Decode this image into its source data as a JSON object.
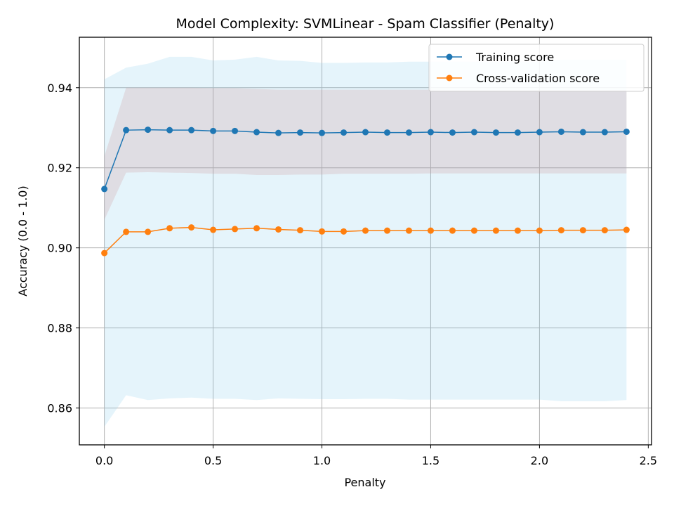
{
  "chart_data": {
    "type": "line",
    "title": "Model Complexity: SVMLinear - Spam Classifier (Penalty)",
    "xlabel": "Penalty",
    "ylabel": "Accuracy (0.0 - 1.0)",
    "xlim": [
      -0.115,
      2.515
    ],
    "ylim": [
      0.8508,
      0.9526
    ],
    "xticks": [
      0.0,
      0.5,
      1.0,
      1.5,
      2.0,
      2.5
    ],
    "xtick_labels": [
      "0.0",
      "0.5",
      "1.0",
      "1.5",
      "2.0",
      "2.5"
    ],
    "yticks": [
      0.86,
      0.88,
      0.9,
      0.92,
      0.94
    ],
    "ytick_labels": [
      "0.86",
      "0.88",
      "0.90",
      "0.92",
      "0.94"
    ],
    "grid": true,
    "legend_position": "top-right",
    "x": [
      0.0,
      0.1,
      0.2,
      0.3,
      0.4,
      0.5,
      0.6,
      0.7,
      0.8,
      0.9,
      1.0,
      1.1,
      1.2,
      1.3,
      1.4,
      1.5,
      1.6,
      1.7,
      1.8,
      1.9,
      2.0,
      2.1,
      2.2,
      2.3,
      2.4
    ],
    "series": [
      {
        "name": "Training score",
        "color": "#1f77b4",
        "values": [
          0.9147,
          0.9294,
          0.9295,
          0.9294,
          0.9294,
          0.9292,
          0.9292,
          0.9289,
          0.9287,
          0.9288,
          0.9287,
          0.9288,
          0.9289,
          0.9288,
          0.9288,
          0.9289,
          0.9288,
          0.9289,
          0.9288,
          0.9288,
          0.9289,
          0.929,
          0.9289,
          0.9289,
          0.929
        ],
        "band_lower": [
          0.907,
          0.9188,
          0.9189,
          0.9188,
          0.9187,
          0.9185,
          0.9185,
          0.9182,
          0.9182,
          0.9183,
          0.9183,
          0.9185,
          0.9185,
          0.9185,
          0.9185,
          0.9186,
          0.9186,
          0.9186,
          0.9186,
          0.9186,
          0.9186,
          0.9186,
          0.9186,
          0.9186,
          0.9186
        ],
        "band_upper": [
          0.9229,
          0.94,
          0.94,
          0.94,
          0.94,
          0.9399,
          0.9399,
          0.9397,
          0.9395,
          0.9395,
          0.9395,
          0.9395,
          0.9395,
          0.9395,
          0.9395,
          0.9395,
          0.9394,
          0.9394,
          0.9394,
          0.9394,
          0.9394,
          0.9394,
          0.9394,
          0.9394,
          0.9394
        ],
        "band_color": "#cc8f8f",
        "band_opacity": 0.22
      },
      {
        "name": "Cross-validation score",
        "color": "#ff7f0e",
        "values": [
          0.8987,
          0.904,
          0.904,
          0.9049,
          0.9051,
          0.9045,
          0.9047,
          0.9049,
          0.9046,
          0.9044,
          0.9041,
          0.9041,
          0.9043,
          0.9043,
          0.9043,
          0.9043,
          0.9043,
          0.9043,
          0.9043,
          0.9043,
          0.9043,
          0.9044,
          0.9044,
          0.9044,
          0.9045
        ],
        "band_lower": [
          0.8553,
          0.8632,
          0.862,
          0.8624,
          0.8626,
          0.8623,
          0.8623,
          0.862,
          0.8624,
          0.8623,
          0.8622,
          0.8622,
          0.8623,
          0.8623,
          0.8621,
          0.8621,
          0.8621,
          0.8621,
          0.8621,
          0.8621,
          0.8621,
          0.8617,
          0.8617,
          0.8617,
          0.862
        ],
        "band_upper": [
          0.9421,
          0.945,
          0.946,
          0.9477,
          0.9477,
          0.9468,
          0.947,
          0.9477,
          0.9468,
          0.9467,
          0.9462,
          0.9462,
          0.9463,
          0.9463,
          0.9465,
          0.9465,
          0.9465,
          0.9465,
          0.9465,
          0.9465,
          0.9465,
          0.947,
          0.947,
          0.947,
          0.947
        ],
        "band_color": "#87ceeb",
        "band_opacity": 0.22
      }
    ]
  }
}
